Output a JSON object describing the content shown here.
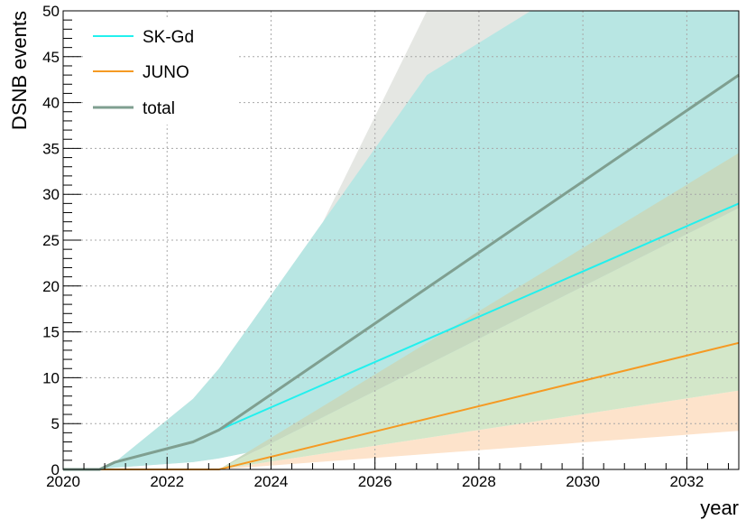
{
  "chart_data": {
    "type": "line",
    "xlabel": "year",
    "ylabel": "DSNB events",
    "xlim": [
      2020,
      2033
    ],
    "ylim": [
      0,
      50
    ],
    "x_ticks": [
      2020,
      2022,
      2024,
      2026,
      2028,
      2030,
      2032
    ],
    "y_ticks": [
      0,
      5,
      10,
      15,
      20,
      25,
      30,
      35,
      40,
      45,
      50
    ],
    "x_tick_labels": [
      "2020",
      "2022",
      "2024",
      "2026",
      "2028",
      "2030",
      "2032"
    ],
    "y_tick_labels": [
      "0",
      "5",
      "10",
      "15",
      "20",
      "25",
      "30",
      "35",
      "40",
      "45",
      "50"
    ],
    "grid": true,
    "legend_position": "top-left",
    "bands": [
      {
        "series": "total",
        "color": "#e5e7e3",
        "upper": [
          [
            2020.0,
            0
          ],
          [
            2020.7,
            0
          ],
          [
            2021.0,
            0.8
          ],
          [
            2022.5,
            7.7
          ],
          [
            2023.0,
            11.0
          ],
          [
            2025.0,
            27.0
          ],
          [
            2027.0,
            50.0
          ],
          [
            2033.0,
            50.0
          ]
        ],
        "lower": [
          [
            2020.0,
            0
          ],
          [
            2020.7,
            0
          ],
          [
            2021.0,
            0.2
          ],
          [
            2022.5,
            0.8
          ],
          [
            2023.0,
            1.2
          ],
          [
            2033.0,
            12.8
          ]
        ]
      },
      {
        "series": "SK-Gd",
        "color": "#b8e6e3",
        "upper": [
          [
            2020.0,
            0
          ],
          [
            2020.7,
            0
          ],
          [
            2021.0,
            0.8
          ],
          [
            2022.5,
            7.7
          ],
          [
            2023.0,
            11.0
          ],
          [
            2025.0,
            27.0
          ],
          [
            2027.0,
            43.0
          ],
          [
            2029.0,
            50.0
          ],
          [
            2033.0,
            50.0
          ]
        ],
        "lower": [
          [
            2020.0,
            0
          ],
          [
            2020.7,
            0
          ],
          [
            2021.0,
            0.2
          ],
          [
            2022.5,
            0.8
          ],
          [
            2023.0,
            1.2
          ],
          [
            2033.0,
            12.8
          ]
        ]
      },
      {
        "series": "JUNO",
        "color": "#fde3cb",
        "upper": [
          [
            2023.0,
            0
          ],
          [
            2033.0,
            8.6
          ]
        ],
        "lower": [
          [
            2023.0,
            0
          ],
          [
            2033.0,
            4.2
          ]
        ]
      },
      {
        "series": "JUNO",
        "color": "#d3e7c9",
        "upper": [
          [
            2023.0,
            0
          ],
          [
            2033.0,
            28.5
          ]
        ],
        "lower": [
          [
            2023.0,
            0
          ],
          [
            2033.0,
            8.6
          ]
        ]
      },
      {
        "series": "JUNO",
        "color": "#c7d9bf",
        "upper": [
          [
            2023.0,
            0
          ],
          [
            2033.0,
            34.5
          ]
        ],
        "lower": [
          [
            2023.0,
            0
          ],
          [
            2033.0,
            28.5
          ]
        ]
      }
    ],
    "series": [
      {
        "name": "SK-Gd",
        "color": "#22f0ee",
        "points": [
          [
            2020.0,
            0
          ],
          [
            2020.7,
            0
          ],
          [
            2021.0,
            0.8
          ],
          [
            2022.5,
            3.0
          ],
          [
            2023.0,
            4.3
          ],
          [
            2033.0,
            29.0
          ]
        ]
      },
      {
        "name": "JUNO",
        "color": "#f59a23",
        "points": [
          [
            2020.0,
            0
          ],
          [
            2023.0,
            0
          ],
          [
            2033.0,
            13.8
          ]
        ]
      },
      {
        "name": "total",
        "color": "#7f9f90",
        "points": [
          [
            2020.0,
            0
          ],
          [
            2020.7,
            0
          ],
          [
            2021.0,
            0.8
          ],
          [
            2022.5,
            3.0
          ],
          [
            2023.0,
            4.3
          ],
          [
            2033.0,
            43.0
          ]
        ]
      }
    ]
  }
}
